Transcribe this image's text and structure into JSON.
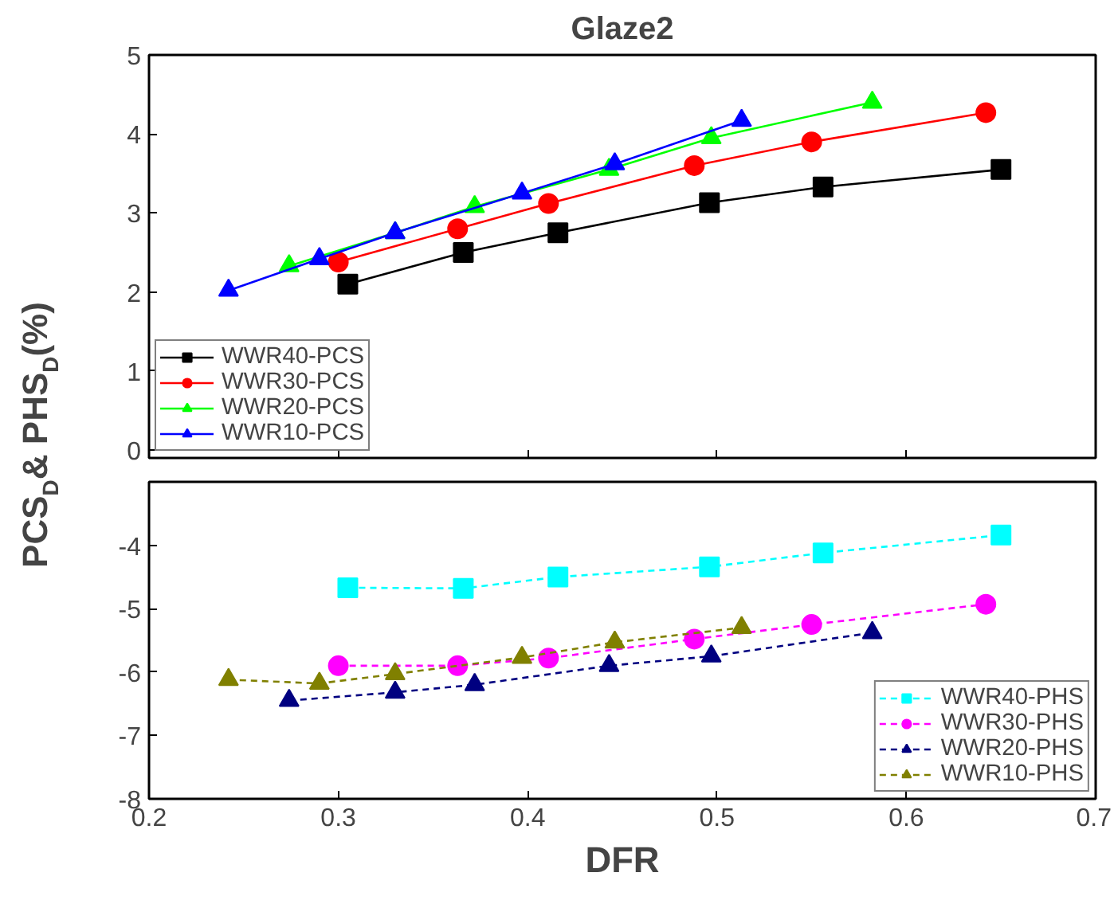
{
  "chart_data": [
    {
      "type": "line",
      "title": "Glaze2",
      "ylabel": "PCS$_{D}$& PHS$_{D}$(%)",
      "xlim": [
        0.2,
        0.7
      ],
      "ylim": [
        -0.1,
        5
      ],
      "xticks": [
        0.2,
        0.3,
        0.4,
        0.5,
        0.6,
        0.7
      ],
      "yticks": [
        0,
        1,
        2,
        3,
        4,
        5
      ],
      "tick_labels": "y",
      "grid": false,
      "legend": "bottom left",
      "series": [
        {
          "name": "WWR40-PCS",
          "color": "#000000",
          "marker": "square",
          "line_style": "solid",
          "x": [
            0.305,
            0.366,
            0.416,
            0.496,
            0.556,
            0.65
          ],
          "values": [
            2.1,
            2.5,
            2.75,
            3.13,
            3.33,
            3.55
          ]
        },
        {
          "name": "WWR30-PCS",
          "color": "#ff0000",
          "marker": "circle",
          "line_style": "solid",
          "x": [
            0.3,
            0.363,
            0.411,
            0.488,
            0.55,
            0.642
          ],
          "values": [
            2.38,
            2.8,
            3.12,
            3.6,
            3.9,
            4.27
          ]
        },
        {
          "name": "WWR20-PCS",
          "color": "#00ff00",
          "marker": "triangle",
          "line_style": "solid",
          "x": [
            0.274,
            0.33,
            0.372,
            0.443,
            0.497,
            0.582
          ],
          "values": [
            2.33,
            2.75,
            3.08,
            3.55,
            3.95,
            4.4
          ]
        },
        {
          "name": "WWR10-PCS",
          "color": "#0000ff",
          "marker": "triangle",
          "line_style": "solid",
          "x": [
            0.242,
            0.29,
            0.33,
            0.397,
            0.446,
            0.513
          ],
          "values": [
            2.02,
            2.42,
            2.75,
            3.25,
            3.62,
            4.17
          ]
        }
      ]
    },
    {
      "type": "line",
      "xlabel": "DFR",
      "xlim": [
        0.2,
        0.7
      ],
      "ylim": [
        -8,
        -3
      ],
      "xticks": [
        0.2,
        0.3,
        0.4,
        0.5,
        0.6,
        0.7
      ],
      "yticks": [
        -8,
        -7,
        -6,
        -5,
        -4
      ],
      "grid": false,
      "legend": "bottom right",
      "series": [
        {
          "name": "WWR40-PHS",
          "color": "#00ffff",
          "marker": "square",
          "line_style": "dashed",
          "x": [
            0.305,
            0.366,
            0.416,
            0.496,
            0.556,
            0.65
          ],
          "values": [
            -4.67,
            -4.68,
            -4.5,
            -4.34,
            -4.12,
            -3.84
          ]
        },
        {
          "name": "WWR30-PHS",
          "color": "#ff00ff",
          "marker": "circle",
          "line_style": "dashed",
          "x": [
            0.3,
            0.363,
            0.411,
            0.488,
            0.55,
            0.642
          ],
          "values": [
            -5.9,
            -5.9,
            -5.78,
            -5.48,
            -5.25,
            -4.93
          ]
        },
        {
          "name": "WWR20-PHS",
          "color": "#000080",
          "marker": "triangle",
          "line_style": "dashed",
          "x": [
            0.274,
            0.33,
            0.372,
            0.443,
            0.497,
            0.582
          ],
          "values": [
            -6.45,
            -6.32,
            -6.2,
            -5.9,
            -5.75,
            -5.38
          ]
        },
        {
          "name": "WWR10-PHS",
          "color": "#808000",
          "marker": "triangle",
          "line_style": "dashed",
          "x": [
            0.242,
            0.29,
            0.33,
            0.397,
            0.446,
            0.513
          ],
          "values": [
            -6.12,
            -6.18,
            -6.03,
            -5.77,
            -5.53,
            -5.3
          ]
        }
      ]
    }
  ]
}
